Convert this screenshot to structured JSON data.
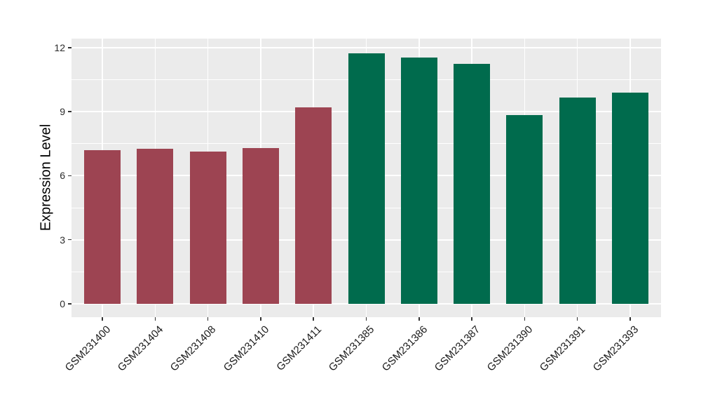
{
  "figure": {
    "background": "#ffffff"
  },
  "chart_data": {
    "type": "bar",
    "title": "",
    "xlabel": "",
    "ylabel": "Expression Level",
    "categories": [
      "GSM231400",
      "GSM231404",
      "GSM231408",
      "GSM231410",
      "GSM231411",
      "GSM231385",
      "GSM231386",
      "GSM231387",
      "GSM231390",
      "GSM231391",
      "GSM231393"
    ],
    "values": [
      7.2,
      7.25,
      7.15,
      7.3,
      9.2,
      11.75,
      11.55,
      11.25,
      8.85,
      9.65,
      9.9
    ],
    "bar_colors": [
      "#9d4452",
      "#9d4452",
      "#9d4452",
      "#9d4452",
      "#9d4452",
      "#006b4d",
      "#006b4d",
      "#006b4d",
      "#006b4d",
      "#006b4d",
      "#006b4d"
    ],
    "ylim": [
      0,
      12
    ],
    "yticks": [
      0,
      3,
      6,
      9,
      12
    ],
    "legend": "none",
    "style": {
      "panel_background": "#ebebeb",
      "grid_color": "#ffffff",
      "tick_color": "#333333",
      "axis_text_color": "#2b2b2b",
      "axis_title_color": "#000000"
    }
  }
}
